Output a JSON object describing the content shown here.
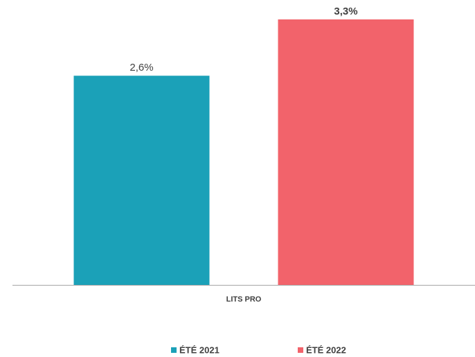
{
  "chart_data": {
    "type": "bar",
    "categories": [
      "LITS PRO"
    ],
    "series": [
      {
        "name": "ÉTÉ 2021",
        "color": "#1ba1b8",
        "values": [
          2.6
        ],
        "value_labels": [
          "2,6%"
        ]
      },
      {
        "name": "ÉTÉ 2022",
        "color": "#f2636b",
        "values": [
          3.3
        ],
        "value_labels": [
          "3,3%"
        ]
      }
    ]
  }
}
